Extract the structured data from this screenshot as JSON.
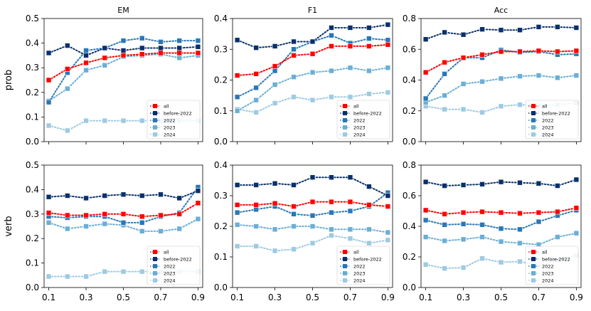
{
  "legend_order": [
    "all",
    "before-2022",
    "2022",
    "2023",
    "2024"
  ],
  "series_colors": {
    "all": "#ff0000",
    "before-2022": "#08306b",
    "2022": "#2a77b6",
    "2023": "#6aaed6",
    "2024": "#9ecae1"
  },
  "chart_data": [
    {
      "type": "line",
      "title": "EM",
      "ylabel": "prob",
      "ylim": [
        0,
        0.5
      ],
      "yticks": [
        0.0,
        0.1,
        0.2,
        0.3,
        0.4,
        0.5
      ],
      "xticks": [
        "0.1",
        "0.3",
        "0.5",
        "0.7",
        "0.9"
      ],
      "x": [
        0.1,
        0.2,
        0.3,
        0.4,
        0.5,
        0.6,
        0.7,
        0.8,
        0.9
      ],
      "series": [
        {
          "name": "all",
          "values": [
            0.25,
            0.295,
            0.32,
            0.34,
            0.35,
            0.355,
            0.36,
            0.36,
            0.36
          ]
        },
        {
          "name": "before-2022",
          "values": [
            0.36,
            0.39,
            0.35,
            0.38,
            0.37,
            0.38,
            0.38,
            0.38,
            0.385
          ]
        },
        {
          "name": "2022",
          "values": [
            0.16,
            0.28,
            0.37,
            0.38,
            0.41,
            0.42,
            0.405,
            0.41,
            0.41
          ]
        },
        {
          "name": "2023",
          "values": [
            0.165,
            0.215,
            0.29,
            0.31,
            0.345,
            0.35,
            0.355,
            0.34,
            0.35
          ]
        },
        {
          "name": "2024",
          "values": [
            0.065,
            0.045,
            0.085,
            0.085,
            0.085,
            0.085,
            0.085,
            0.085,
            0.085
          ]
        }
      ]
    },
    {
      "type": "line",
      "title": "F1",
      "ylabel": "",
      "ylim": [
        0,
        0.4
      ],
      "yticks": [
        0.0,
        0.1,
        0.2,
        0.3,
        0.4
      ],
      "xticks": [
        "0.1",
        "0.3",
        "0.5",
        "0.7",
        "0.9"
      ],
      "x": [
        0.1,
        0.2,
        0.3,
        0.4,
        0.5,
        0.6,
        0.7,
        0.8,
        0.9
      ],
      "series": [
        {
          "name": "all",
          "values": [
            0.215,
            0.22,
            0.245,
            0.28,
            0.285,
            0.31,
            0.31,
            0.31,
            0.315
          ]
        },
        {
          "name": "before-2022",
          "values": [
            0.33,
            0.305,
            0.31,
            0.325,
            0.325,
            0.37,
            0.37,
            0.37,
            0.38
          ]
        },
        {
          "name": "2022",
          "values": [
            0.145,
            0.175,
            0.23,
            0.3,
            0.325,
            0.345,
            0.32,
            0.335,
            0.33
          ]
        },
        {
          "name": "2023",
          "values": [
            0.1,
            0.135,
            0.185,
            0.21,
            0.225,
            0.23,
            0.24,
            0.23,
            0.24
          ]
        },
        {
          "name": "2024",
          "values": [
            0.105,
            0.095,
            0.125,
            0.145,
            0.135,
            0.145,
            0.145,
            0.155,
            0.16
          ]
        }
      ]
    },
    {
      "type": "line",
      "title": "Acc",
      "ylabel": "",
      "ylim": [
        0,
        0.8
      ],
      "yticks": [
        0.0,
        0.2,
        0.4,
        0.6,
        0.8
      ],
      "xticks": [
        "0.1",
        "0.3",
        "0.5",
        "0.7",
        "0.9"
      ],
      "x": [
        0.1,
        0.2,
        0.3,
        0.4,
        0.5,
        0.6,
        0.7,
        0.8,
        0.9
      ],
      "series": [
        {
          "name": "all",
          "values": [
            0.45,
            0.515,
            0.545,
            0.565,
            0.585,
            0.585,
            0.59,
            0.585,
            0.59
          ]
        },
        {
          "name": "before-2022",
          "values": [
            0.665,
            0.71,
            0.695,
            0.73,
            0.725,
            0.725,
            0.745,
            0.745,
            0.74
          ]
        },
        {
          "name": "2022",
          "values": [
            0.28,
            0.44,
            0.545,
            0.545,
            0.595,
            0.58,
            0.585,
            0.565,
            0.57
          ]
        },
        {
          "name": "2023",
          "values": [
            0.255,
            0.3,
            0.375,
            0.39,
            0.41,
            0.425,
            0.43,
            0.415,
            0.43
          ]
        },
        {
          "name": "2024",
          "values": [
            0.23,
            0.21,
            0.21,
            0.19,
            0.23,
            0.24,
            0.235,
            0.24,
            0.25
          ]
        }
      ]
    },
    {
      "type": "line",
      "title": "",
      "ylabel": "verb",
      "ylim": [
        0,
        0.5
      ],
      "yticks": [
        0.0,
        0.1,
        0.2,
        0.3,
        0.4,
        0.5
      ],
      "xticks": [
        "0.1",
        "0.3",
        "0.5",
        "0.7",
        "0.9"
      ],
      "x": [
        0.1,
        0.2,
        0.3,
        0.4,
        0.5,
        0.6,
        0.7,
        0.8,
        0.9
      ],
      "series": [
        {
          "name": "all",
          "values": [
            0.305,
            0.295,
            0.295,
            0.3,
            0.3,
            0.29,
            0.295,
            0.3,
            0.345
          ]
        },
        {
          "name": "before-2022",
          "values": [
            0.37,
            0.375,
            0.365,
            0.375,
            0.38,
            0.375,
            0.38,
            0.365,
            0.395
          ]
        },
        {
          "name": "2022",
          "values": [
            0.29,
            0.285,
            0.29,
            0.29,
            0.265,
            0.265,
            0.29,
            0.305,
            0.41
          ]
        },
        {
          "name": "2023",
          "values": [
            0.265,
            0.24,
            0.25,
            0.26,
            0.255,
            0.23,
            0.23,
            0.24,
            0.28
          ]
        },
        {
          "name": "2024",
          "values": [
            0.045,
            0.045,
            0.045,
            0.065,
            0.065,
            0.065,
            0.065,
            0.065,
            0.065
          ]
        }
      ]
    },
    {
      "type": "line",
      "title": "",
      "ylabel": "",
      "ylim": [
        0,
        0.4
      ],
      "yticks": [
        0.0,
        0.1,
        0.2,
        0.3,
        0.4
      ],
      "xticks": [
        "0.1",
        "0.3",
        "0.5",
        "0.7",
        "0.9"
      ],
      "x": [
        0.1,
        0.2,
        0.3,
        0.4,
        0.5,
        0.6,
        0.7,
        0.8,
        0.9
      ],
      "series": [
        {
          "name": "all",
          "values": [
            0.27,
            0.27,
            0.275,
            0.265,
            0.28,
            0.28,
            0.28,
            0.27,
            0.265
          ]
        },
        {
          "name": "before-2022",
          "values": [
            0.335,
            0.335,
            0.34,
            0.335,
            0.36,
            0.36,
            0.36,
            0.33,
            0.3
          ]
        },
        {
          "name": "2022",
          "values": [
            0.245,
            0.255,
            0.265,
            0.24,
            0.235,
            0.245,
            0.25,
            0.265,
            0.31
          ]
        },
        {
          "name": "2023",
          "values": [
            0.205,
            0.2,
            0.19,
            0.2,
            0.2,
            0.19,
            0.19,
            0.19,
            0.18
          ]
        },
        {
          "name": "2024",
          "values": [
            0.135,
            0.135,
            0.12,
            0.125,
            0.145,
            0.17,
            0.16,
            0.145,
            0.155
          ]
        }
      ]
    },
    {
      "type": "line",
      "title": "",
      "ylabel": "",
      "ylim": [
        0,
        0.8
      ],
      "yticks": [
        0.0,
        0.2,
        0.4,
        0.6,
        0.8
      ],
      "xticks": [
        "0.1",
        "0.3",
        "0.5",
        "0.7",
        "0.9"
      ],
      "x": [
        0.1,
        0.2,
        0.3,
        0.4,
        0.5,
        0.6,
        0.7,
        0.8,
        0.9
      ],
      "series": [
        {
          "name": "all",
          "values": [
            0.505,
            0.48,
            0.49,
            0.495,
            0.49,
            0.485,
            0.49,
            0.495,
            0.52
          ]
        },
        {
          "name": "before-2022",
          "values": [
            0.69,
            0.665,
            0.67,
            0.675,
            0.69,
            0.685,
            0.68,
            0.665,
            0.705
          ]
        },
        {
          "name": "2022",
          "values": [
            0.44,
            0.41,
            0.415,
            0.41,
            0.385,
            0.38,
            0.43,
            0.47,
            0.505
          ]
        },
        {
          "name": "2023",
          "values": [
            0.33,
            0.305,
            0.315,
            0.33,
            0.3,
            0.29,
            0.28,
            0.33,
            0.355
          ]
        },
        {
          "name": "2024",
          "values": [
            0.15,
            0.125,
            0.13,
            0.19,
            0.165,
            0.17,
            0.14,
            0.18,
            0.21
          ]
        }
      ]
    }
  ]
}
